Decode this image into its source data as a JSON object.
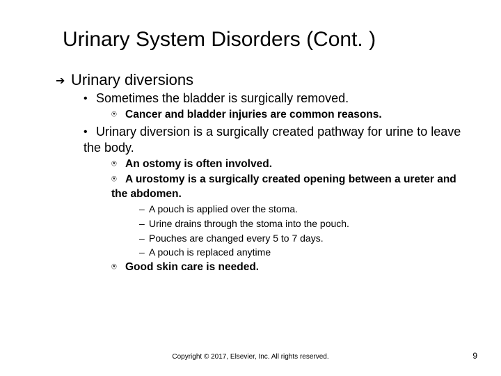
{
  "title": "Urinary System Disorders (Cont. )",
  "l1": "Urinary diversions",
  "l2a": "Sometimes the bladder is surgically removed.",
  "l3a": "Cancer and bladder injuries are common reasons.",
  "l2b": "Urinary diversion is a surgically created pathway for urine to leave the body.",
  "l3b": "An ostomy is often involved.",
  "l3c": "A urostomy is a surgically created opening between a ureter and the abdomen.",
  "l4a": "A pouch is applied over the stoma.",
  "l4b": "Urine drains through the stoma into the pouch.",
  "l4c": "Pouches are changed every 5 to 7 days.",
  "l4d": "A pouch is replaced anytime",
  "l3d": "Good skin care is needed.",
  "copyright": "Copyright © 2017, Elsevier, Inc. All rights reserved.",
  "pagenum": "9",
  "colors": {
    "background": "#ffffff",
    "text": "#000000"
  },
  "fonts": {
    "family": "Arial",
    "title_size": 30,
    "l1_size": 22,
    "l2_size": 18,
    "l3_size": 15.5,
    "l4_size": 14,
    "footer_size": 10
  }
}
